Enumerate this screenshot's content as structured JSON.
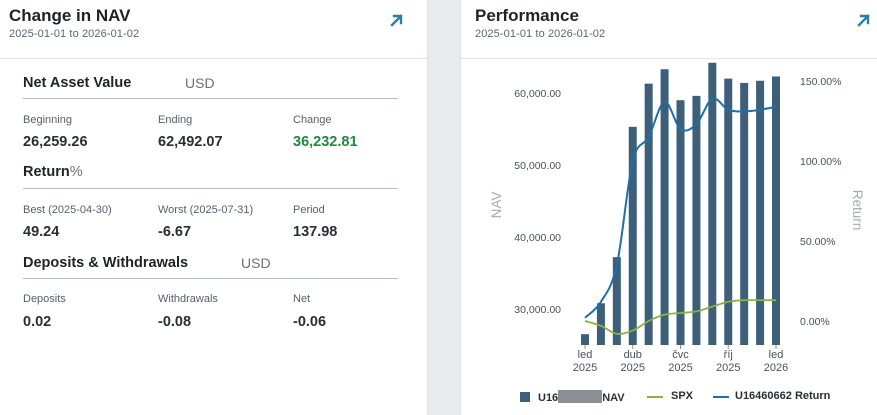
{
  "change_in_nav": {
    "title": "Change in NAV",
    "date_range": "2025-01-01 to 2026-01-02",
    "expand_icon": "external-link-arrow-icon",
    "nav_section": {
      "title": "Net Asset Value",
      "currency": "USD",
      "beginning_label": "Beginning",
      "beginning_value": "26,259.26",
      "ending_label": "Ending",
      "ending_value": "62,492.07",
      "change_label": "Change",
      "change_value": "36,232.81"
    },
    "return_section": {
      "title": "Return",
      "unit": "%",
      "best_label": "Best (2025-04-30)",
      "best_value": "49.24",
      "worst_label": "Worst (2025-07-31)",
      "worst_value": "-6.67",
      "period_label": "Period",
      "period_value": "137.98"
    },
    "deposits_section": {
      "title": "Deposits & Withdrawals",
      "currency": "USD",
      "deposits_label": "Deposits",
      "deposits_value": "0.02",
      "withdrawals_label": "Withdrawals",
      "withdrawals_value": "-0.08",
      "net_label": "Net",
      "net_value": "-0.06"
    }
  },
  "performance": {
    "title": "Performance",
    "date_range": "2025-01-01 to 2026-01-02",
    "expand_icon": "external-link-arrow-icon",
    "legend": {
      "nav_prefix": "U16",
      "nav_suffix": "NAV",
      "spx": "SPX",
      "return": "U16460662 Return"
    }
  },
  "colors": {
    "bar": "#3d5f7a",
    "return_line": "#1f6fa8",
    "spx_line": "#8db043",
    "accent_arrow": "#2a7fa6",
    "positive": "#1f8a3b"
  },
  "chart_data": {
    "type": "bar",
    "ylabel": "NAV",
    "y2label": "Return",
    "ylim": [
      25000,
      65000
    ],
    "y_ticks": [
      "60,000.00",
      "50,000.00",
      "40,000.00",
      "30,000.00"
    ],
    "y2lim": [
      -0.15,
      1.65
    ],
    "y2_ticks": [
      "150.00%",
      "100.00%",
      "50.00%",
      "0.00%"
    ],
    "x_ticks": [
      {
        "month": "led",
        "year": "2025"
      },
      {
        "month": "dub",
        "year": "2025"
      },
      {
        "month": "čvc",
        "year": "2025"
      },
      {
        "month": "říj",
        "year": "2025"
      },
      {
        "month": "led",
        "year": "2026"
      }
    ],
    "categories": [
      "2025-01",
      "2025-02",
      "2025-03",
      "2025-04",
      "2025-05",
      "2025-06",
      "2025-07",
      "2025-08",
      "2025-09",
      "2025-10",
      "2025-11",
      "2025-12",
      "2026-01"
    ],
    "series": [
      {
        "name": "U16 NAV",
        "type": "bar",
        "values": [
          26500,
          30800,
          37200,
          55300,
          61300,
          63300,
          59000,
          59600,
          64200,
          62000,
          61400,
          61700,
          62300
        ]
      },
      {
        "name": "SPX",
        "type": "line",
        "values": [
          0.0,
          -0.03,
          -0.08,
          -0.06,
          0.0,
          0.04,
          0.05,
          0.06,
          0.09,
          0.12,
          0.13,
          0.13,
          0.13
        ]
      },
      {
        "name": "U16460662 Return",
        "type": "line",
        "values": [
          0.02,
          0.12,
          0.35,
          1.0,
          1.15,
          1.37,
          1.2,
          1.23,
          1.39,
          1.32,
          1.31,
          1.32,
          1.34
        ]
      }
    ]
  }
}
